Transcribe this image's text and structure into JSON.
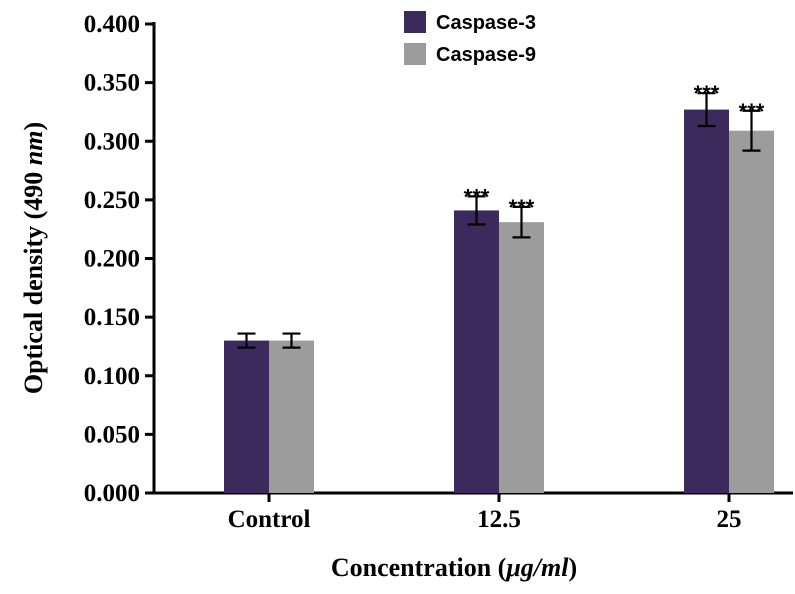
{
  "chart_data": {
    "type": "bar",
    "categories": [
      "Control",
      "12.5",
      "25"
    ],
    "series": [
      {
        "name": "Caspase-3",
        "color": "#3b2a5b",
        "values": [
          0.13,
          0.241,
          0.327
        ],
        "errors": [
          0.006,
          0.012,
          0.014
        ],
        "significance": [
          "",
          "***",
          "***"
        ]
      },
      {
        "name": "Caspase-9",
        "color": "#9c9c9c",
        "values": [
          0.13,
          0.231,
          0.309
        ],
        "errors": [
          0.006,
          0.013,
          0.017
        ],
        "significance": [
          "",
          "***",
          "***"
        ]
      }
    ],
    "ylim": [
      0,
      0.4
    ],
    "yticks": [
      "0.000",
      "0.050",
      "0.100",
      "0.150",
      "0.200",
      "0.250",
      "0.300",
      "0.350",
      "0.400"
    ],
    "ylabel_prefix": "Optical density (490 ",
    "ylabel_unit": "nm",
    "ylabel_suffix": ")",
    "xlabel_prefix": "Concentration (",
    "xlabel_unit": "μg/ml",
    "xlabel_suffix": ")",
    "legend_position": "top-center",
    "grid": false
  }
}
